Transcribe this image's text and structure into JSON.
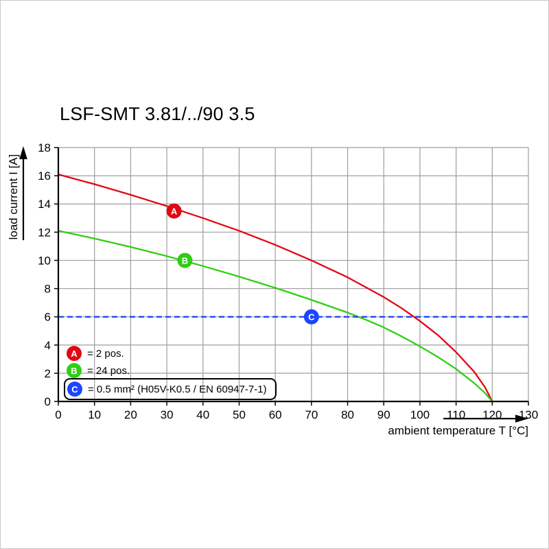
{
  "title": "LSF-SMT 3.81/../90 3.5",
  "chart_data": {
    "type": "line",
    "title": "LSF-SMT 3.81/../90 3.5",
    "xlabel": "ambient temperature T [°C]",
    "ylabel": "load current I [A]",
    "xlim": [
      0,
      130
    ],
    "ylim": [
      0,
      18
    ],
    "xticks": [
      0,
      10,
      20,
      30,
      40,
      50,
      60,
      70,
      80,
      90,
      100,
      110,
      120,
      130
    ],
    "yticks": [
      0,
      2,
      4,
      6,
      8,
      10,
      12,
      14,
      16,
      18
    ],
    "grid": true,
    "grid_color": "#9e9e9e",
    "axis_color": "#000000",
    "legend_position": "lower-left-inside",
    "series": [
      {
        "name": "A",
        "label": "= 2 pos.",
        "color": "#e30613",
        "style": "solid",
        "x": [
          0,
          10,
          20,
          30,
          40,
          50,
          60,
          70,
          80,
          90,
          95,
          100,
          105,
          110,
          115,
          118,
          120
        ],
        "y": [
          16.1,
          15.4,
          14.65,
          13.85,
          13.0,
          12.1,
          11.1,
          10.0,
          8.8,
          7.4,
          6.6,
          5.7,
          4.7,
          3.5,
          2.1,
          1.0,
          0
        ],
        "marker": {
          "x": 32,
          "y": 13.5
        }
      },
      {
        "name": "B",
        "label": "= 24 pos.",
        "color": "#2fce13",
        "style": "solid",
        "x": [
          0,
          10,
          20,
          30,
          40,
          50,
          60,
          70,
          80,
          85,
          90,
          95,
          100,
          105,
          110,
          115,
          118,
          120
        ],
        "y": [
          12.1,
          11.55,
          10.95,
          10.3,
          9.6,
          8.85,
          8.05,
          7.2,
          6.3,
          5.8,
          5.25,
          4.6,
          3.9,
          3.15,
          2.3,
          1.3,
          0.6,
          0
        ],
        "marker": {
          "x": 35,
          "y": 10
        }
      },
      {
        "name": "C",
        "label": "= 0.5 mm² (H05V-K0.5 / EN 60947-7-1)",
        "color": "#1b46ff",
        "style": "dashed",
        "x": [
          0,
          130
        ],
        "y": [
          6,
          6
        ],
        "marker": {
          "x": 70,
          "y": 6
        }
      }
    ]
  }
}
